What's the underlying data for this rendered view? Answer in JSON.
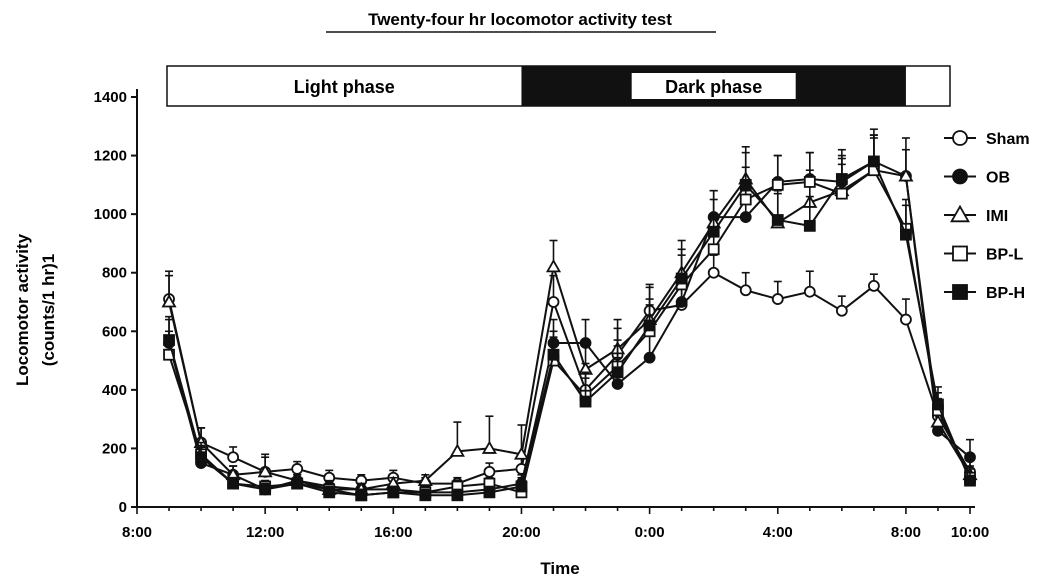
{
  "chart_data": {
    "type": "line",
    "title": "Twenty-four hr locomotor activity test",
    "xlabel": "Time",
    "ylabel_line1": "Locomotor activity",
    "ylabel_line2": "(counts/1 hr)1",
    "ylim": [
      0,
      1400
    ],
    "yticks": [
      "0",
      "200",
      "400",
      "600",
      "800",
      "1000",
      "1200",
      "1400"
    ],
    "xlim": [
      8,
      34
    ],
    "xtick_labels": [
      "8:00",
      "12:00",
      "16:00",
      "20:00",
      "0:00",
      "4:00",
      "8:00",
      "10:00"
    ],
    "xtick_hours": [
      8,
      12,
      16,
      20,
      24,
      28,
      32,
      34
    ],
    "phases": [
      {
        "label": "Light phase",
        "start": 8,
        "end": 20,
        "fill": "light"
      },
      {
        "label": "Dark phase",
        "start": 20,
        "end": 32,
        "fill": "dark"
      }
    ],
    "x": [
      9,
      10,
      11,
      12,
      13,
      14,
      15,
      16,
      17,
      18,
      19,
      20,
      21,
      22,
      23,
      24,
      25,
      26,
      27,
      28,
      29,
      30,
      31,
      32,
      33,
      34
    ],
    "series": [
      {
        "name": "Sham",
        "marker": "circle-open",
        "values": [
          710,
          220,
          170,
          120,
          130,
          100,
          90,
          100,
          80,
          80,
          120,
          130,
          700,
          400,
          520,
          670,
          690,
          800,
          740,
          710,
          735,
          670,
          755,
          640,
          310,
          120
        ],
        "err": [
          95,
          50,
          35,
          50,
          25,
          25,
          20,
          25,
          20,
          20,
          30,
          40,
          90,
          90,
          90,
          90,
          70,
          60,
          60,
          60,
          70,
          50,
          40,
          70,
          60,
          50
        ]
      },
      {
        "name": "OB",
        "marker": "circle-filled",
        "values": [
          560,
          150,
          110,
          60,
          90,
          70,
          60,
          60,
          50,
          50,
          60,
          80,
          560,
          560,
          420,
          510,
          700,
          990,
          990,
          1110,
          1120,
          1110,
          1180,
          1130,
          260,
          170
        ],
        "err": [
          80,
          40,
          30,
          30,
          20,
          20,
          20,
          20,
          20,
          20,
          20,
          30,
          80,
          80,
          90,
          90,
          90,
          90,
          90,
          90,
          90,
          90,
          90,
          90,
          60,
          60
        ]
      },
      {
        "name": "IMI",
        "marker": "triangle-open",
        "values": [
          700,
          220,
          110,
          120,
          90,
          60,
          60,
          80,
          90,
          190,
          200,
          180,
          820,
          470,
          540,
          640,
          800,
          970,
          1120,
          970,
          1040,
          1080,
          1150,
          1130,
          290,
          110
        ],
        "err": [
          90,
          50,
          30,
          60,
          20,
          20,
          20,
          20,
          20,
          100,
          110,
          100,
          90,
          100,
          100,
          110,
          110,
          110,
          110,
          100,
          110,
          110,
          120,
          130,
          60,
          50
        ]
      },
      {
        "name": "BP-L",
        "marker": "square-open",
        "values": [
          520,
          180,
          80,
          70,
          80,
          60,
          40,
          50,
          50,
          70,
          80,
          50,
          500,
          380,
          480,
          600,
          760,
          880,
          1050,
          1100,
          1110,
          1070,
          1150,
          950,
          330,
          100
        ],
        "err": [
          80,
          40,
          20,
          20,
          20,
          20,
          20,
          20,
          20,
          20,
          20,
          30,
          80,
          80,
          90,
          90,
          100,
          110,
          110,
          100,
          100,
          100,
          110,
          100,
          60,
          40
        ]
      },
      {
        "name": "BP-H",
        "marker": "square-filled",
        "values": [
          570,
          170,
          80,
          60,
          80,
          50,
          40,
          50,
          40,
          40,
          50,
          70,
          520,
          360,
          460,
          620,
          780,
          940,
          1100,
          980,
          960,
          1120,
          1180,
          930,
          350,
          90
        ],
        "err": [
          80,
          40,
          20,
          20,
          20,
          20,
          20,
          20,
          20,
          20,
          20,
          30,
          80,
          80,
          90,
          90,
          100,
          110,
          110,
          100,
          100,
          100,
          110,
          100,
          60,
          40
        ]
      }
    ]
  }
}
